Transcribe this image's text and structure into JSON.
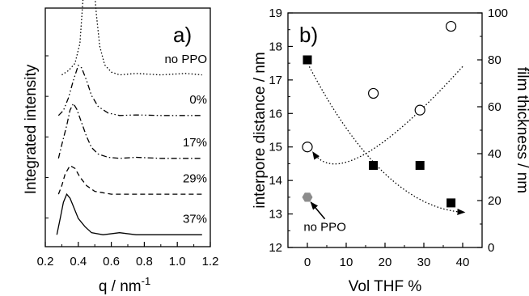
{
  "chart_data": [
    {
      "type": "line",
      "panel_label": "a)",
      "xlabel": "q / nm",
      "xlabel_superscript": "-1",
      "ylabel": "Integrated intensity",
      "xlim": [
        0.2,
        1.2
      ],
      "x_ticks": [
        "0.2",
        "0.4",
        "0.6",
        "0.8",
        "1.0",
        "1.2"
      ],
      "grid": false,
      "series": [
        {
          "name": "no PPO",
          "dash": "dotted",
          "offset": 0.72,
          "amp": 0.6,
          "x": [
            0.3,
            0.34,
            0.38,
            0.41,
            0.43,
            0.45,
            0.46,
            0.47,
            0.49,
            0.51,
            0.53,
            0.56,
            0.6,
            0.65,
            0.75,
            0.9,
            1.05,
            1.15
          ],
          "y": [
            0.0,
            0.03,
            0.08,
            0.22,
            0.55,
            0.9,
            1.0,
            0.95,
            0.7,
            0.42,
            0.2,
            0.07,
            0.02,
            0.0,
            0.01,
            0.0,
            0.01,
            0.0
          ]
        },
        {
          "name": "0%",
          "dash": "dashdotdot",
          "offset": 0.55,
          "amp": 0.21,
          "x": [
            0.28,
            0.31,
            0.34,
            0.37,
            0.4,
            0.42,
            0.45,
            0.48,
            0.52,
            0.58,
            0.65,
            0.75,
            0.9,
            1.15
          ],
          "y": [
            0.0,
            0.1,
            0.35,
            0.7,
            1.0,
            0.95,
            0.7,
            0.4,
            0.18,
            0.05,
            0.0,
            0.01,
            0.0,
            0.0
          ]
        },
        {
          "name": "17%",
          "dash": "dashdot",
          "offset": 0.37,
          "amp": 0.23,
          "x": [
            0.28,
            0.3,
            0.33,
            0.35,
            0.37,
            0.39,
            0.42,
            0.45,
            0.48,
            0.52,
            0.58,
            0.65,
            0.75,
            0.9,
            1.15
          ],
          "y": [
            0.0,
            0.25,
            0.6,
            0.88,
            1.0,
            0.9,
            0.65,
            0.4,
            0.2,
            0.08,
            0.02,
            0.0,
            0.02,
            0.0,
            0.0
          ]
        },
        {
          "name": "29%",
          "dash": "dashed",
          "offset": 0.22,
          "amp": 0.12,
          "x": [
            0.28,
            0.3,
            0.32,
            0.35,
            0.38,
            0.41,
            0.45,
            0.5,
            0.6,
            0.7,
            0.9,
            1.15
          ],
          "y": [
            0.0,
            0.3,
            0.7,
            1.0,
            0.9,
            0.6,
            0.3,
            0.1,
            0.0,
            0.0,
            0.0,
            0.0
          ]
        },
        {
          "name": "37%",
          "dash": "solid",
          "offset": 0.05,
          "amp": 0.17,
          "x": [
            0.27,
            0.29,
            0.31,
            0.33,
            0.35,
            0.37,
            0.4,
            0.44,
            0.48,
            0.55,
            0.65,
            0.75,
            0.9,
            1.15
          ],
          "y": [
            0.0,
            0.4,
            0.8,
            1.0,
            0.9,
            0.7,
            0.4,
            0.2,
            0.05,
            0.0,
            0.05,
            0.0,
            0.0,
            0.0
          ]
        }
      ]
    },
    {
      "type": "scatter",
      "panel_label": "b)",
      "xlabel": "Vol THF %",
      "ylabel": "interpore distance / nm",
      "ylabel_right": "film thickness / nm",
      "xlim": [
        -5,
        45
      ],
      "ylim": [
        12,
        19
      ],
      "ylim_right": [
        0,
        100
      ],
      "x_ticks": [
        "0",
        "10",
        "20",
        "30",
        "40"
      ],
      "y_ticks": [
        "12",
        "13",
        "14",
        "15",
        "16",
        "17",
        "18",
        "19"
      ],
      "y_ticks_right": [
        "0",
        "20",
        "40",
        "60",
        "80",
        "100"
      ],
      "grid": false,
      "series": [
        {
          "marker": "filled-square",
          "axis": "left",
          "x": [
            0,
            17,
            29,
            37
          ],
          "y": [
            17.6,
            14.45,
            14.45,
            13.33
          ]
        },
        {
          "marker": "open-circle",
          "axis": "left",
          "x": [
            0,
            17,
            29,
            37
          ],
          "y": [
            15.0,
            16.6,
            16.1,
            18.6
          ]
        },
        {
          "marker": "gray-hexagon",
          "axis": "left",
          "x": [
            0
          ],
          "y": [
            13.5
          ]
        }
      ],
      "trend_curves": [
        {
          "from_x": 40,
          "from_y": 17.4,
          "via_x": 15,
          "via_y": 14.8,
          "to_x": 1.4,
          "to_y": 14.85,
          "arrow": "end"
        },
        {
          "from_x": 0.5,
          "from_y": 17.4,
          "via_x": 20,
          "via_y": 14.2,
          "to_x": 40.5,
          "to_y": 13.05,
          "arrow": "end"
        }
      ],
      "annotation": {
        "text": "no PPO",
        "arrow_from": [
          4.5,
          12.85
        ],
        "arrow_to": [
          0.9,
          13.35
        ],
        "text_at": [
          4.5,
          12.5
        ]
      }
    }
  ]
}
